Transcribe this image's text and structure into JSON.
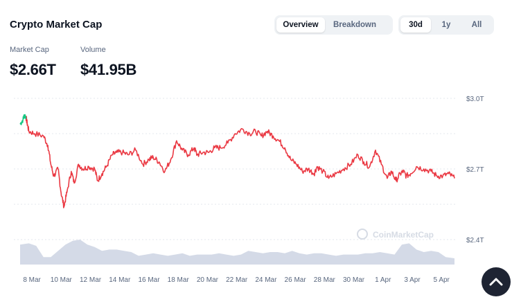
{
  "header": {
    "title": "Crypto Market Cap"
  },
  "view_toggle": {
    "options": [
      "Overview",
      "Breakdown"
    ],
    "active": "Overview"
  },
  "range_toggle": {
    "options": [
      "30d",
      "1y",
      "All"
    ],
    "active": "30d"
  },
  "stats": {
    "market_cap_label": "Market Cap",
    "market_cap_value": "$2.66T",
    "volume_label": "Volume",
    "volume_value": "$41.95B"
  },
  "watermark": "CoinMarketCap",
  "colors": {
    "down": "#ea3943",
    "up": "#16c784",
    "volume": "#cfd6e4",
    "grid": "#e3e7ee"
  },
  "chart_data": {
    "type": "line",
    "y_ticks": [
      "$3.0T",
      "$2.7T",
      "$2.4T"
    ],
    "y_tick_values": [
      3.0,
      2.7,
      2.4
    ],
    "ylim": [
      2.4,
      3.0
    ],
    "x_ticks": [
      "8 Mar",
      "10 Mar",
      "12 Mar",
      "14 Mar",
      "16 Mar",
      "18 Mar",
      "20 Mar",
      "22 Mar",
      "24 Mar",
      "26 Mar",
      "28 Mar",
      "30 Mar",
      "1 Apr",
      "3 Apr",
      "5 Apr"
    ],
    "x_tick_days": [
      0,
      2,
      4,
      6,
      8,
      10,
      12,
      14,
      16,
      18,
      20,
      22,
      24,
      26,
      28
    ],
    "x_day_range": [
      -0.1,
      29.6
    ],
    "series": [
      {
        "days": [
          -0.1,
          0.1,
          0.2,
          0.3,
          0.4,
          0.5,
          0.9,
          1.5,
          1.8,
          2.0,
          2.2,
          2.5,
          2.7,
          2.9,
          3.1,
          3.4,
          3.6,
          3.9,
          4.2,
          4.6,
          5.0,
          5.2,
          5.5,
          5.8,
          6.2,
          6.5,
          6.9,
          7.3,
          7.8,
          8.3,
          8.7,
          9.0,
          9.4,
          9.8,
          10.2,
          10.6,
          11.0,
          11.4,
          11.8,
          12.0,
          12.4,
          12.8,
          13.2,
          13.6,
          14.1,
          14.6,
          15.1,
          15.6,
          16.0,
          16.4,
          16.8,
          17.2,
          17.6,
          18.0,
          18.4,
          18.8,
          19.2,
          19.6,
          20.0,
          20.2,
          20.6,
          21.0,
          21.5,
          22.0,
          22.5,
          23.0,
          23.4,
          23.8,
          24.2,
          24.6,
          25.0,
          25.3,
          25.6,
          25.9,
          26.1,
          26.3,
          26.6,
          27.0,
          27.5,
          28.0,
          28.4,
          28.8,
          29.2,
          29.6
        ],
        "values": [
          2.89,
          2.91,
          2.93,
          2.92,
          2.89,
          2.86,
          2.85,
          2.84,
          2.8,
          2.72,
          2.67,
          2.7,
          2.6,
          2.54,
          2.6,
          2.69,
          2.64,
          2.72,
          2.7,
          2.71,
          2.7,
          2.65,
          2.68,
          2.71,
          2.76,
          2.77,
          2.77,
          2.76,
          2.78,
          2.72,
          2.74,
          2.75,
          2.73,
          2.69,
          2.74,
          2.82,
          2.78,
          2.76,
          2.79,
          2.76,
          2.77,
          2.77,
          2.79,
          2.79,
          2.81,
          2.85,
          2.87,
          2.85,
          2.86,
          2.84,
          2.86,
          2.84,
          2.82,
          2.79,
          2.74,
          2.72,
          2.69,
          2.7,
          2.68,
          2.71,
          2.69,
          2.66,
          2.68,
          2.7,
          2.72,
          2.76,
          2.73,
          2.71,
          2.78,
          2.72,
          2.66,
          2.69,
          2.65,
          2.68,
          2.69,
          2.67,
          2.68,
          2.71,
          2.7,
          2.69,
          2.67,
          2.67,
          2.68,
          2.66
        ],
        "color_note": "green segment from -0.1 to 0.3 day, red afterwards",
        "up_until_day": 0.3
      }
    ],
    "volume": {
      "days": [
        -0.1,
        0.5,
        1.0,
        1.5,
        2.0,
        2.5,
        3.0,
        3.5,
        4.0,
        4.5,
        5.0,
        5.5,
        6.0,
        6.5,
        7.0,
        7.5,
        8.0,
        8.5,
        9.0,
        9.5,
        10.0,
        10.5,
        11.0,
        11.5,
        12.0,
        12.5,
        13.0,
        13.5,
        14.0,
        14.5,
        15.0,
        15.5,
        16.0,
        16.5,
        17.0,
        17.5,
        18.0,
        18.5,
        19.0,
        19.5,
        20.0,
        20.5,
        21.0,
        21.5,
        22.0,
        22.5,
        23.0,
        23.5,
        24.0,
        24.5,
        25.0,
        25.5,
        26.0,
        26.5,
        27.0,
        27.5,
        28.0,
        28.5,
        29.0,
        29.6
      ],
      "relative": [
        0.8,
        0.85,
        0.75,
        0.3,
        0.3,
        0.55,
        0.8,
        0.95,
        1.0,
        0.8,
        0.7,
        0.55,
        0.6,
        0.6,
        0.55,
        0.5,
        0.35,
        0.4,
        0.45,
        0.4,
        0.35,
        0.4,
        0.45,
        0.35,
        0.4,
        0.4,
        0.4,
        0.45,
        0.4,
        0.35,
        0.4,
        0.55,
        0.5,
        0.45,
        0.5,
        0.5,
        0.45,
        0.55,
        0.45,
        0.4,
        0.45,
        0.45,
        0.4,
        0.35,
        0.4,
        0.4,
        0.4,
        0.45,
        0.45,
        0.5,
        0.45,
        0.4,
        0.8,
        0.85,
        0.6,
        0.5,
        0.55,
        0.5,
        0.3,
        0.25
      ]
    }
  }
}
